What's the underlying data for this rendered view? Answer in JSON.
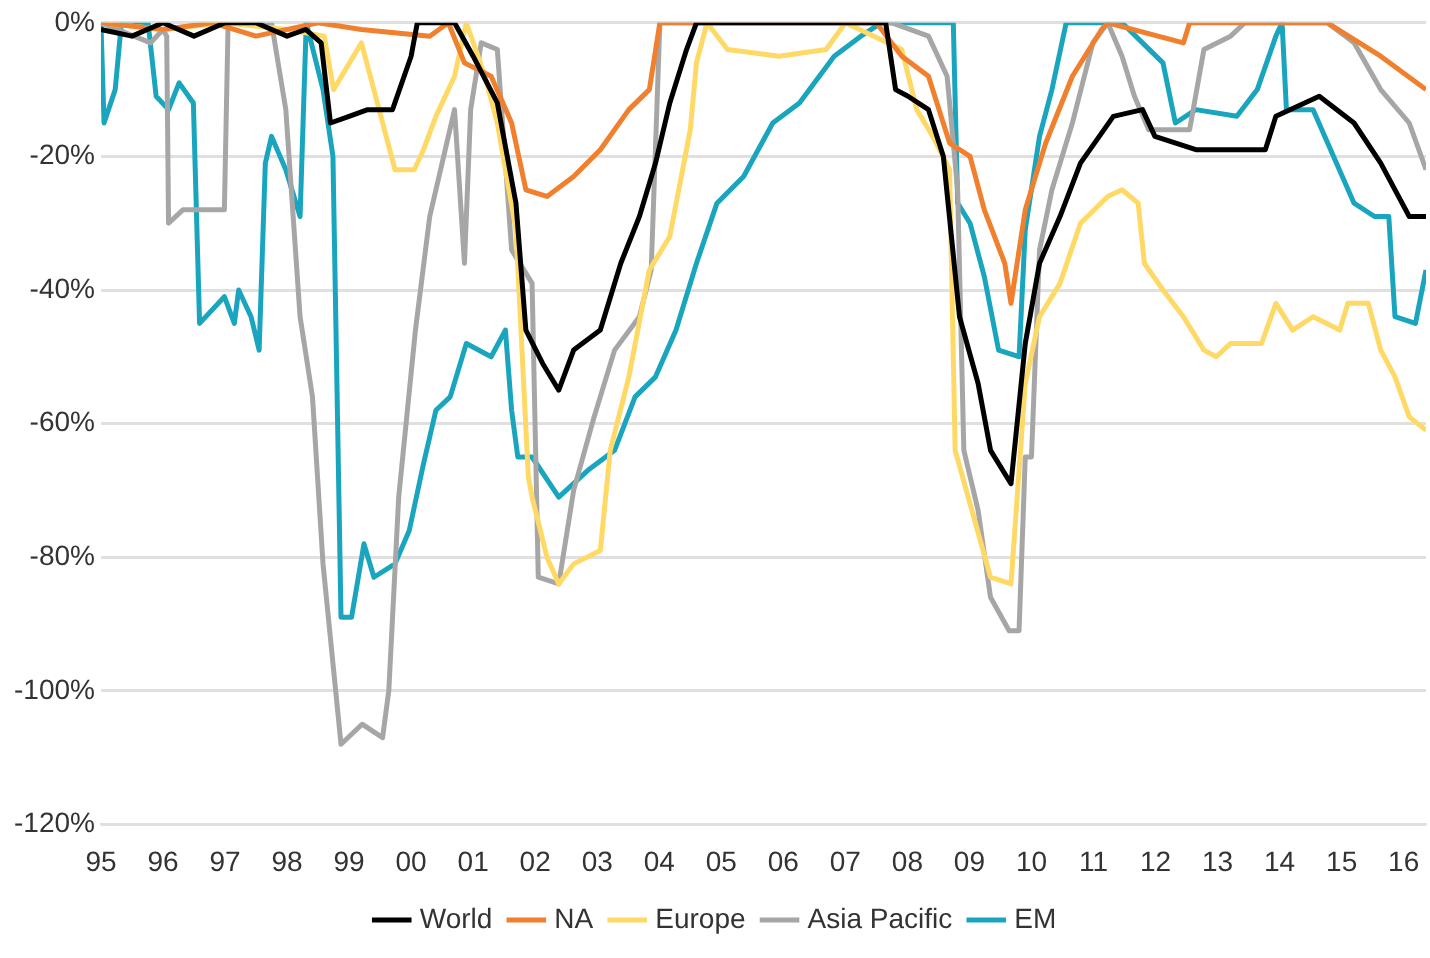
{
  "chart_data": {
    "type": "line",
    "xlim": [
      1995,
      2016.36
    ],
    "ylim": [
      -120,
      0
    ],
    "xticks": [
      {
        "value": 1995,
        "label": "95"
      },
      {
        "value": 1996,
        "label": "96"
      },
      {
        "value": 1997,
        "label": "97"
      },
      {
        "value": 1998,
        "label": "98"
      },
      {
        "value": 1999,
        "label": "99"
      },
      {
        "value": 2000,
        "label": "00"
      },
      {
        "value": 2001,
        "label": "01"
      },
      {
        "value": 2002,
        "label": "02"
      },
      {
        "value": 2003,
        "label": "03"
      },
      {
        "value": 2004,
        "label": "04"
      },
      {
        "value": 2005,
        "label": "05"
      },
      {
        "value": 2006,
        "label": "06"
      },
      {
        "value": 2007,
        "label": "07"
      },
      {
        "value": 2008,
        "label": "08"
      },
      {
        "value": 2009,
        "label": "09"
      },
      {
        "value": 2010,
        "label": "10"
      },
      {
        "value": 2011,
        "label": "11"
      },
      {
        "value": 2012,
        "label": "12"
      },
      {
        "value": 2013,
        "label": "13"
      },
      {
        "value": 2014,
        "label": "14"
      },
      {
        "value": 2015,
        "label": "15"
      },
      {
        "value": 2016,
        "label": "16"
      }
    ],
    "yticks": [
      {
        "value": 0,
        "label": "0%"
      },
      {
        "value": -20,
        "label": "-20%"
      },
      {
        "value": -40,
        "label": "-40%"
      },
      {
        "value": -60,
        "label": "-60%"
      },
      {
        "value": -80,
        "label": "-80%"
      },
      {
        "value": -100,
        "label": "-100%"
      },
      {
        "value": -120,
        "label": "-120%"
      }
    ],
    "grid": "y",
    "legend": "bottom",
    "marker": "none",
    "line_style": "solid",
    "series": [
      {
        "name": "World",
        "color": "#000000",
        "x": [
          1995,
          1995.5,
          1996,
          1996.5,
          1997,
          1997.5,
          1998,
          1998.3,
          1998.55,
          1998.7,
          1999,
          1999.3,
          1999.7,
          2000,
          2000.1,
          2000.7,
          2001,
          2001.39,
          2001.69,
          2001.85,
          2002.12,
          2002.38,
          2002.62,
          2003.05,
          2003.38,
          2003.68,
          2003.94,
          2004.17,
          2004.44,
          2004.6,
          2007.65,
          2007.81,
          2008.01,
          2008.34,
          2008.58,
          2008.84,
          2009.14,
          2009.34,
          2009.67,
          2009.9,
          2010.13,
          2010.46,
          2010.79,
          2011.32,
          2011.79,
          2011.99,
          2012.65,
          2013.11,
          2013.77,
          2013.94,
          2014.64,
          2015.2,
          2015.63,
          2016.09,
          2016.36
        ],
        "values": [
          -1,
          -2,
          0,
          -2,
          0,
          0,
          -2,
          -1,
          -3,
          -15,
          -14,
          -13,
          -13,
          -5,
          0,
          0,
          -5,
          -12,
          -27,
          -46,
          -51,
          -55,
          -49,
          -46,
          -36,
          -29,
          -21,
          -12,
          -4,
          0,
          0,
          -10,
          -11,
          -13,
          -20,
          -44,
          -54,
          -64,
          -69,
          -48,
          -36,
          -29,
          -21,
          -14,
          -13,
          -17,
          -19,
          -19,
          -19,
          -14,
          -11,
          -15,
          -21,
          -29,
          -29
        ]
      },
      {
        "name": "NA",
        "color": "#f07f2e",
        "x": [
          1995,
          1996,
          1996.8,
          1997.5,
          1998.5,
          1999.2,
          2000.3,
          2000.6,
          2000.86,
          2001.29,
          2001.62,
          2001.85,
          2002.19,
          2002.62,
          2003.05,
          2003.51,
          2003.84,
          2004.01,
          2007.5,
          2007.91,
          2008.34,
          2008.68,
          2009.01,
          2009.24,
          2009.57,
          2009.67,
          2009.9,
          2010.23,
          2010.66,
          2011.13,
          2011.23,
          2012.45,
          2012.55,
          2014.77,
          2015.63,
          2016.36
        ],
        "values": [
          0,
          -1,
          0,
          -2,
          0,
          -1,
          -2,
          0,
          -6,
          -8,
          -15,
          -25,
          -26,
          -23,
          -19,
          -13,
          -10,
          0,
          0,
          -5,
          -8,
          -18,
          -20,
          -28,
          -36,
          -42,
          -28,
          -18,
          -8,
          -1,
          0,
          -3,
          0,
          0,
          -5,
          -10
        ]
      },
      {
        "name": "Europe",
        "color": "#ffd966",
        "x": [
          1995,
          1996,
          1997,
          1998,
          1998.6,
          1998.75,
          1999.2,
          1999.74,
          2000.05,
          2000.2,
          2000.4,
          2000.7,
          2000.89,
          2001.19,
          2001.39,
          2001.69,
          2001.89,
          2001.95,
          2002.19,
          2002.38,
          2002.62,
          2003.05,
          2003.21,
          2003.51,
          2003.84,
          2004.17,
          2004.5,
          2004.6,
          2004.77,
          2005.1,
          2005.93,
          2006.69,
          2007,
          2007.91,
          2008.15,
          2008.41,
          2008.68,
          2008.77,
          2009.01,
          2009.34,
          2009.67,
          2009.9,
          2010.13,
          2010.46,
          2010.79,
          2011.23,
          2011.46,
          2011.72,
          2011.82,
          2012.12,
          2012.45,
          2012.78,
          2012.98,
          2013.21,
          2013.71,
          2013.94,
          2014.21,
          2014.54,
          2014.97,
          2015.1,
          2015.43,
          2015.63,
          2015.86,
          2016.09,
          2016.36
        ],
        "values": [
          0,
          -1,
          0,
          -1,
          -2,
          -10,
          -3,
          -22,
          -22,
          -19,
          -14,
          -8,
          0,
          -8,
          -15,
          -31,
          -68,
          -71,
          -80,
          -84,
          -81,
          -79,
          -64,
          -53,
          -37,
          -32,
          -16,
          -6,
          0,
          -4,
          -5,
          -4,
          0,
          -4,
          -13,
          -17,
          -22,
          -64,
          -72,
          -83,
          -84,
          -54,
          -44,
          -39,
          -30,
          -26,
          -25,
          -27,
          -36,
          -40,
          -44,
          -49,
          -50,
          -48,
          -48,
          -42,
          -46,
          -44,
          -46,
          -42,
          -42,
          -49,
          -53,
          -59,
          -61
        ]
      },
      {
        "name": "Asia Pacific",
        "color": "#a6a6a6",
        "x": [
          1995,
          1995.8,
          1996,
          1996.06,
          1996.09,
          1996.32,
          1996.99,
          1997.05,
          1997.75,
          1997.98,
          1998.21,
          1998.41,
          1998.58,
          1998.87,
          1999.21,
          1999.54,
          1999.64,
          1999.8,
          2000.07,
          2000.3,
          2000.7,
          2000.86,
          2000.96,
          2001.13,
          2001.39,
          2001.62,
          2001.95,
          2002.05,
          2002.38,
          2002.62,
          2002.95,
          2003.28,
          2003.68,
          2003.87,
          2004.01,
          2007.75,
          2008.34,
          2008.64,
          2008.81,
          2008.91,
          2009.14,
          2009.34,
          2009.64,
          2009.8,
          2009.9,
          2010,
          2010.13,
          2010.33,
          2010.66,
          2010.99,
          2011.23,
          2011.46,
          2011.66,
          2011.89,
          2012.55,
          2012.78,
          2013.21,
          2013.44,
          2014.77,
          2015.2,
          2015.63,
          2016.09,
          2016.36
        ],
        "values": [
          0,
          -3,
          -1,
          -2,
          -30,
          -28,
          -28,
          0,
          0,
          -13,
          -44,
          -56,
          -81,
          -108,
          -105,
          -107,
          -100,
          -71,
          -46,
          -29,
          -13,
          -36,
          -13,
          -3,
          -4,
          -34,
          -39,
          -83,
          -84,
          -70,
          -59,
          -49,
          -44,
          -37,
          0,
          0,
          -2,
          -8,
          -25,
          -64,
          -73,
          -86,
          -91,
          -91,
          -65,
          -65,
          -34,
          -25,
          -15,
          -3,
          0,
          -5,
          -11,
          -16,
          -16,
          -4,
          -2,
          0,
          0,
          -3,
          -10,
          -15,
          -22
        ]
      },
      {
        "name": "EM",
        "color": "#1aa5bf",
        "x": [
          1995,
          1995.05,
          1995.23,
          1995.33,
          1995.76,
          1995.89,
          1996.09,
          1996.26,
          1996.49,
          1996.59,
          1996.99,
          1997.15,
          1997.22,
          1997.42,
          1997.55,
          1997.65,
          1997.75,
          1997.98,
          1998.21,
          1998.31,
          1998.58,
          1998.74,
          1998.87,
          1999.04,
          1999.24,
          1999.4,
          1999.74,
          1999.97,
          2000.2,
          2000.4,
          2000.63,
          2000.89,
          2001.29,
          2001.52,
          2001.62,
          2001.72,
          2001.95,
          2002.38,
          2002.85,
          2003.28,
          2003.61,
          2003.94,
          2004.27,
          2004.6,
          2004.93,
          2005.36,
          2005.83,
          2006.26,
          2006.82,
          2007.25,
          2007.58,
          2008.74,
          2008.81,
          2009.01,
          2009.24,
          2009.47,
          2009.8,
          2009.9,
          2010.13,
          2010.33,
          2010.56,
          2011.46,
          2011.79,
          2012.12,
          2012.32,
          2012.65,
          2013.31,
          2013.64,
          2013.94,
          2014.04,
          2014.11,
          2014.54,
          2014.87,
          2015.2,
          2015.53,
          2015.76,
          2015.86,
          2016.19,
          2016.36
        ],
        "values": [
          0,
          -15,
          -10,
          0,
          0,
          -11,
          -13,
          -9,
          -12,
          -45,
          -41,
          -45,
          -40,
          -44,
          -49,
          -21,
          -17,
          -22,
          -29,
          0,
          -10,
          -20,
          -89,
          -89,
          -78,
          -83,
          -81,
          -76,
          -66,
          -58,
          -56,
          -48,
          -50,
          -46,
          -58,
          -65,
          -65,
          -71,
          -67,
          -64,
          -56,
          -53,
          -46,
          -36,
          -27,
          -23,
          -15,
          -12,
          -5,
          -2,
          0,
          0,
          -27,
          -30,
          -38,
          -49,
          -50,
          -31,
          -17,
          -10,
          0,
          0,
          -3,
          -6,
          -15,
          -13,
          -14,
          -10,
          -2,
          0,
          -13,
          -13,
          -20,
          -27,
          -29,
          -29,
          -44,
          -45,
          -37
        ]
      }
    ]
  }
}
